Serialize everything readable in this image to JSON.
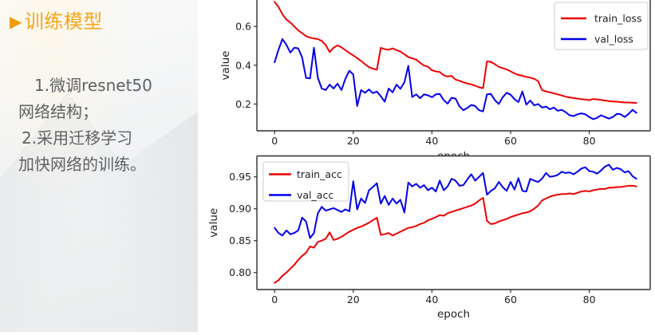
{
  "left_panel": {
    "title": {
      "marker": "▶",
      "text": "训练模型",
      "color": "#F9A41B"
    },
    "body_lines": [
      "1.微调resnet50",
      "网络结构；",
      "2.采用迁移学习",
      "加快网络的训练。"
    ],
    "text_color": "#5f6165"
  },
  "colors": {
    "accent_orange": "#F9A41B",
    "series_red": "#EE0000",
    "series_blue": "#0000EE",
    "axis": "#2E2E2E",
    "legend_border": "#CCCCCC"
  },
  "chart_data": [
    {
      "type": "line",
      "title": "",
      "xlabel": "epoch",
      "ylabel": "value",
      "xticks": [
        0,
        20,
        40,
        60,
        80
      ],
      "yticks": [
        0.2,
        0.4,
        0.6
      ],
      "xlim": [
        -4.5,
        95.5
      ],
      "ylim": [
        0.062,
        0.736
      ],
      "grid": false,
      "legend_position": "upper right",
      "x_start": 0,
      "x_step": 1,
      "note_top_clipped": "top of axes cut off by screenshot edge",
      "series": [
        {
          "name": "train_loss",
          "color": "#EE0000",
          "values": [
            0.727,
            0.7,
            0.663,
            0.635,
            0.62,
            0.6,
            0.58,
            0.565,
            0.55,
            0.542,
            0.538,
            0.535,
            0.525,
            0.504,
            0.468,
            0.49,
            0.502,
            0.492,
            0.478,
            0.463,
            0.45,
            0.437,
            0.422,
            0.405,
            0.39,
            0.382,
            0.377,
            0.49,
            0.483,
            0.48,
            0.487,
            0.478,
            0.47,
            0.456,
            0.442,
            0.435,
            0.429,
            0.412,
            0.398,
            0.392,
            0.374,
            0.368,
            0.365,
            0.348,
            0.342,
            0.345,
            0.326,
            0.32,
            0.312,
            0.306,
            0.301,
            0.294,
            0.286,
            0.282,
            0.42,
            0.417,
            0.405,
            0.392,
            0.384,
            0.378,
            0.368,
            0.358,
            0.35,
            0.345,
            0.34,
            0.336,
            0.33,
            0.318,
            0.272,
            0.265,
            0.26,
            0.255,
            0.25,
            0.244,
            0.238,
            0.234,
            0.231,
            0.228,
            0.225,
            0.223,
            0.22,
            0.226,
            0.224,
            0.221,
            0.218,
            0.215,
            0.213,
            0.212,
            0.21,
            0.208,
            0.208,
            0.207,
            0.206
          ]
        },
        {
          "name": "val_loss",
          "color": "#0000EE",
          "values": [
            0.415,
            0.48,
            0.535,
            0.505,
            0.465,
            0.49,
            0.487,
            0.44,
            0.335,
            0.332,
            0.49,
            0.335,
            0.28,
            0.272,
            0.3,
            0.28,
            0.305,
            0.272,
            0.33,
            0.372,
            0.352,
            0.19,
            0.272,
            0.258,
            0.275,
            0.256,
            0.264,
            0.24,
            0.212,
            0.28,
            0.26,
            0.3,
            0.278,
            0.312,
            0.397,
            0.236,
            0.25,
            0.23,
            0.25,
            0.245,
            0.235,
            0.25,
            0.252,
            0.22,
            0.202,
            0.232,
            0.228,
            0.188,
            0.168,
            0.18,
            0.195,
            0.19,
            0.168,
            0.162,
            0.25,
            0.252,
            0.22,
            0.2,
            0.235,
            0.258,
            0.248,
            0.225,
            0.21,
            0.264,
            0.197,
            0.218,
            0.193,
            0.2,
            0.182,
            0.187,
            0.173,
            0.182,
            0.165,
            0.17,
            0.158,
            0.142,
            0.138,
            0.147,
            0.152,
            0.147,
            0.133,
            0.122,
            0.129,
            0.142,
            0.133,
            0.125,
            0.133,
            0.149,
            0.147,
            0.133,
            0.149,
            0.17,
            0.155
          ]
        }
      ]
    },
    {
      "type": "line",
      "title": "",
      "xlabel": "epoch",
      "ylabel": "value",
      "xticks": [
        0,
        20,
        40,
        60,
        80
      ],
      "yticks": [
        0.8,
        0.85,
        0.9,
        0.95
      ],
      "xlim": [
        -4.5,
        95.5
      ],
      "ylim": [
        0.7734,
        0.9828
      ],
      "grid": false,
      "legend_position": "upper left",
      "x_start": 0,
      "x_step": 1,
      "series": [
        {
          "name": "train_acc",
          "color": "#EE0000",
          "values": [
            0.784,
            0.788,
            0.795,
            0.8,
            0.806,
            0.812,
            0.82,
            0.826,
            0.831,
            0.841,
            0.839,
            0.848,
            0.85,
            0.853,
            0.863,
            0.851,
            0.853,
            0.856,
            0.86,
            0.864,
            0.867,
            0.87,
            0.872,
            0.875,
            0.878,
            0.882,
            0.886,
            0.859,
            0.86,
            0.862,
            0.858,
            0.861,
            0.864,
            0.867,
            0.87,
            0.871,
            0.873,
            0.876,
            0.878,
            0.882,
            0.884,
            0.887,
            0.89,
            0.889,
            0.893,
            0.895,
            0.897,
            0.899,
            0.901,
            0.903,
            0.905,
            0.908,
            0.913,
            0.917,
            0.881,
            0.876,
            0.877,
            0.88,
            0.882,
            0.884,
            0.887,
            0.889,
            0.891,
            0.893,
            0.894,
            0.896,
            0.9,
            0.905,
            0.913,
            0.916,
            0.919,
            0.921,
            0.922,
            0.923,
            0.923,
            0.924,
            0.923,
            0.925,
            0.927,
            0.928,
            0.927,
            0.929,
            0.93,
            0.931,
            0.931,
            0.933,
            0.933,
            0.934,
            0.934,
            0.935,
            0.936,
            0.936,
            0.935
          ]
        },
        {
          "name": "val_acc",
          "color": "#0000EE",
          "values": [
            0.87,
            0.862,
            0.858,
            0.866,
            0.86,
            0.862,
            0.866,
            0.886,
            0.88,
            0.854,
            0.862,
            0.893,
            0.903,
            0.897,
            0.899,
            0.901,
            0.898,
            0.895,
            0.899,
            0.896,
            0.943,
            0.899,
            0.916,
            0.909,
            0.929,
            0.934,
            0.94,
            0.908,
            0.92,
            0.906,
            0.916,
            0.908,
            0.914,
            0.894,
            0.941,
            0.935,
            0.939,
            0.933,
            0.937,
            0.929,
            0.933,
            0.927,
            0.944,
            0.929,
            0.935,
            0.947,
            0.944,
            0.936,
            0.937,
            0.946,
            0.954,
            0.944,
            0.95,
            0.956,
            0.922,
            0.928,
            0.932,
            0.942,
            0.934,
            0.928,
            0.942,
            0.93,
            0.948,
            0.928,
            0.927,
            0.947,
            0.944,
            0.942,
            0.947,
            0.956,
            0.95,
            0.951,
            0.953,
            0.958,
            0.956,
            0.957,
            0.954,
            0.958,
            0.963,
            0.965,
            0.959,
            0.958,
            0.955,
            0.96,
            0.966,
            0.969,
            0.961,
            0.964,
            0.962,
            0.957,
            0.959,
            0.951,
            0.947
          ]
        }
      ]
    }
  ]
}
